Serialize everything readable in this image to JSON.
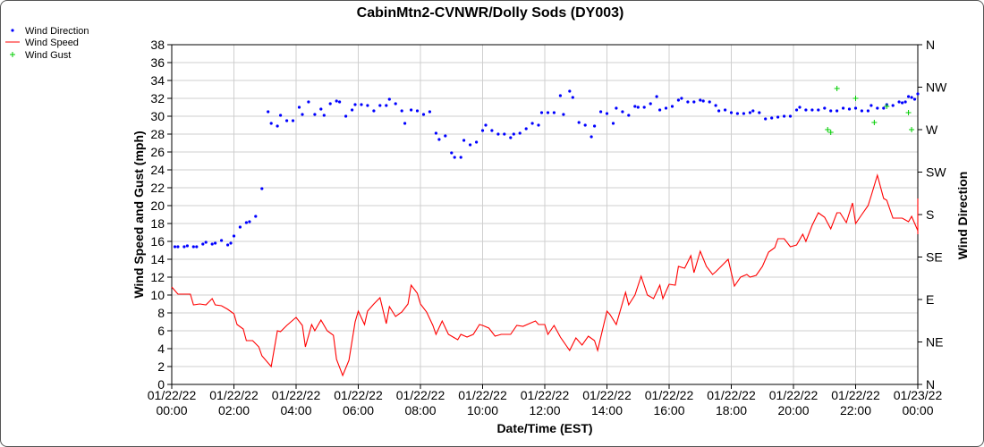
{
  "chart_data": {
    "type": "line",
    "title": "CabinMtn2-CVNWR/Dolly Sods (DY003)",
    "xlabel": "Date/Time (EST)",
    "ylabel": "Wind Speed and Gust (mph)",
    "y2label": "Wind Direction",
    "grid": true,
    "legend_position": "top-left",
    "xlim_hours": [
      0,
      24
    ],
    "ylim": [
      0,
      38
    ],
    "yticks": [
      0,
      2,
      4,
      6,
      8,
      10,
      12,
      14,
      16,
      18,
      20,
      22,
      24,
      26,
      28,
      30,
      32,
      34,
      36,
      38
    ],
    "y2ticks": [
      "N",
      "NE",
      "E",
      "SE",
      "S",
      "SW",
      "W",
      "NW",
      "N"
    ],
    "xticks": [
      {
        "hour": 0,
        "date": "01/22/22",
        "time": "00:00"
      },
      {
        "hour": 2,
        "date": "01/22/22",
        "time": "02:00"
      },
      {
        "hour": 4,
        "date": "01/22/22",
        "time": "04:00"
      },
      {
        "hour": 6,
        "date": "01/22/22",
        "time": "06:00"
      },
      {
        "hour": 8,
        "date": "01/22/22",
        "time": "08:00"
      },
      {
        "hour": 10,
        "date": "01/22/22",
        "time": "10:00"
      },
      {
        "hour": 12,
        "date": "01/22/22",
        "time": "12:00"
      },
      {
        "hour": 14,
        "date": "01/22/22",
        "time": "14:00"
      },
      {
        "hour": 16,
        "date": "01/22/22",
        "time": "16:00"
      },
      {
        "hour": 18,
        "date": "01/22/22",
        "time": "18:00"
      },
      {
        "hour": 20,
        "date": "01/22/22",
        "time": "20:00"
      },
      {
        "hour": 22,
        "date": "01/22/22",
        "time": "22:00"
      },
      {
        "hour": 24,
        "date": "01/23/22",
        "time": "00:00"
      }
    ],
    "series": [
      {
        "name": "Wind Direction",
        "marker": "dot",
        "color": "#0000ff",
        "axis": "right",
        "points": [
          [
            0.1,
            15.4
          ],
          [
            0.2,
            15.4
          ],
          [
            0.4,
            15.4
          ],
          [
            0.5,
            15.5
          ],
          [
            0.7,
            15.4
          ],
          [
            0.8,
            15.4
          ],
          [
            1.0,
            15.7
          ],
          [
            1.1,
            15.9
          ],
          [
            1.3,
            15.7
          ],
          [
            1.4,
            15.8
          ],
          [
            1.6,
            16.1
          ],
          [
            1.8,
            15.6
          ],
          [
            1.9,
            15.8
          ],
          [
            2.0,
            16.6
          ],
          [
            2.2,
            17.6
          ],
          [
            2.4,
            18.1
          ],
          [
            2.5,
            18.2
          ],
          [
            2.7,
            18.8
          ],
          [
            2.9,
            21.9
          ],
          [
            3.1,
            30.5
          ],
          [
            3.2,
            29.2
          ],
          [
            3.4,
            28.9
          ],
          [
            3.5,
            30.1
          ],
          [
            3.7,
            29.5
          ],
          [
            3.9,
            29.5
          ],
          [
            4.1,
            31.0
          ],
          [
            4.2,
            30.2
          ],
          [
            4.4,
            31.6
          ],
          [
            4.6,
            30.2
          ],
          [
            4.8,
            30.8
          ],
          [
            4.9,
            30.1
          ],
          [
            5.1,
            31.4
          ],
          [
            5.3,
            31.7
          ],
          [
            5.4,
            31.6
          ],
          [
            5.6,
            30.0
          ],
          [
            5.8,
            30.7
          ],
          [
            5.9,
            31.3
          ],
          [
            6.1,
            31.3
          ],
          [
            6.3,
            31.2
          ],
          [
            6.5,
            30.6
          ],
          [
            6.7,
            31.2
          ],
          [
            6.9,
            31.2
          ],
          [
            7.0,
            31.9
          ],
          [
            7.2,
            31.4
          ],
          [
            7.4,
            30.6
          ],
          [
            7.5,
            29.2
          ],
          [
            7.7,
            30.7
          ],
          [
            7.9,
            30.6
          ],
          [
            8.1,
            30.2
          ],
          [
            8.3,
            30.5
          ],
          [
            8.5,
            28.1
          ],
          [
            8.6,
            27.4
          ],
          [
            8.8,
            27.8
          ],
          [
            9.0,
            25.9
          ],
          [
            9.1,
            25.4
          ],
          [
            9.3,
            25.4
          ],
          [
            9.4,
            27.3
          ],
          [
            9.6,
            26.8
          ],
          [
            9.8,
            27.1
          ],
          [
            10.0,
            28.4
          ],
          [
            10.1,
            29.0
          ],
          [
            10.3,
            28.4
          ],
          [
            10.5,
            28.0
          ],
          [
            10.7,
            28.0
          ],
          [
            10.9,
            27.6
          ],
          [
            11.0,
            28.0
          ],
          [
            11.2,
            28.1
          ],
          [
            11.4,
            28.6
          ],
          [
            11.6,
            29.2
          ],
          [
            11.8,
            29.0
          ],
          [
            11.9,
            30.4
          ],
          [
            12.1,
            30.4
          ],
          [
            12.3,
            30.4
          ],
          [
            12.5,
            32.3
          ],
          [
            12.6,
            30.2
          ],
          [
            12.8,
            32.8
          ],
          [
            12.9,
            32.1
          ],
          [
            13.1,
            29.3
          ],
          [
            13.3,
            29.0
          ],
          [
            13.5,
            27.7
          ],
          [
            13.6,
            28.9
          ],
          [
            13.8,
            30.5
          ],
          [
            14.0,
            30.3
          ],
          [
            14.2,
            29.2
          ],
          [
            14.3,
            30.9
          ],
          [
            14.5,
            30.5
          ],
          [
            14.7,
            30.1
          ],
          [
            14.9,
            31.1
          ],
          [
            15.0,
            31.0
          ],
          [
            15.2,
            31.0
          ],
          [
            15.4,
            31.4
          ],
          [
            15.6,
            32.2
          ],
          [
            15.7,
            30.7
          ],
          [
            15.9,
            30.9
          ],
          [
            16.1,
            31.1
          ],
          [
            16.3,
            31.8
          ],
          [
            16.4,
            32.0
          ],
          [
            16.6,
            31.6
          ],
          [
            16.8,
            31.6
          ],
          [
            17.0,
            31.8
          ],
          [
            17.1,
            31.7
          ],
          [
            17.3,
            31.6
          ],
          [
            17.5,
            31.2
          ],
          [
            17.6,
            30.6
          ],
          [
            17.8,
            30.7
          ],
          [
            18.0,
            30.4
          ],
          [
            18.2,
            30.3
          ],
          [
            18.4,
            30.3
          ],
          [
            18.6,
            30.4
          ],
          [
            18.7,
            30.6
          ],
          [
            18.9,
            30.4
          ],
          [
            19.1,
            29.7
          ],
          [
            19.3,
            29.8
          ],
          [
            19.5,
            29.9
          ],
          [
            19.7,
            30.0
          ],
          [
            19.9,
            30.0
          ],
          [
            20.1,
            30.7
          ],
          [
            20.2,
            31.0
          ],
          [
            20.4,
            30.7
          ],
          [
            20.6,
            30.7
          ],
          [
            20.8,
            30.7
          ],
          [
            21.0,
            30.9
          ],
          [
            21.2,
            30.6
          ],
          [
            21.4,
            30.6
          ],
          [
            21.6,
            30.9
          ],
          [
            21.8,
            30.8
          ],
          [
            22.0,
            30.9
          ],
          [
            22.2,
            30.6
          ],
          [
            22.4,
            30.6
          ],
          [
            22.5,
            31.2
          ],
          [
            22.7,
            30.9
          ],
          [
            22.9,
            30.9
          ],
          [
            23.0,
            31.3
          ],
          [
            23.2,
            31.2
          ],
          [
            23.4,
            31.6
          ],
          [
            23.5,
            31.5
          ],
          [
            23.6,
            31.6
          ],
          [
            23.7,
            32.2
          ],
          [
            23.8,
            32.1
          ],
          [
            23.9,
            31.9
          ],
          [
            24.0,
            32.5
          ]
        ]
      },
      {
        "name": "Wind Speed",
        "marker": "line",
        "color": "#ff0000",
        "axis": "left",
        "points": [
          [
            0.0,
            10.9
          ],
          [
            0.2,
            10.1
          ],
          [
            0.4,
            10.1
          ],
          [
            0.6,
            10.1
          ],
          [
            0.7,
            8.9
          ],
          [
            0.9,
            9.0
          ],
          [
            1.1,
            8.9
          ],
          [
            1.3,
            9.6
          ],
          [
            1.4,
            8.9
          ],
          [
            1.6,
            8.8
          ],
          [
            1.8,
            8.4
          ],
          [
            2.0,
            7.9
          ],
          [
            2.1,
            6.7
          ],
          [
            2.3,
            6.2
          ],
          [
            2.4,
            4.9
          ],
          [
            2.6,
            4.9
          ],
          [
            2.8,
            4.2
          ],
          [
            2.9,
            3.2
          ],
          [
            3.2,
            2.0
          ],
          [
            3.4,
            6.0
          ],
          [
            3.5,
            5.9
          ],
          [
            3.7,
            6.6
          ],
          [
            4.0,
            7.5
          ],
          [
            4.2,
            6.6
          ],
          [
            4.3,
            4.2
          ],
          [
            4.5,
            6.7
          ],
          [
            4.6,
            6.0
          ],
          [
            4.8,
            7.2
          ],
          [
            5.0,
            6.0
          ],
          [
            5.2,
            5.5
          ],
          [
            5.3,
            2.8
          ],
          [
            5.5,
            1.0
          ],
          [
            5.7,
            2.7
          ],
          [
            5.9,
            7.0
          ],
          [
            6.0,
            8.2
          ],
          [
            6.2,
            6.7
          ],
          [
            6.3,
            8.2
          ],
          [
            6.5,
            9.0
          ],
          [
            6.7,
            9.7
          ],
          [
            6.9,
            6.8
          ],
          [
            7.0,
            8.7
          ],
          [
            7.2,
            7.6
          ],
          [
            7.4,
            8.1
          ],
          [
            7.6,
            9.0
          ],
          [
            7.7,
            11.1
          ],
          [
            7.9,
            10.2
          ],
          [
            8.0,
            9.0
          ],
          [
            8.2,
            8.1
          ],
          [
            8.4,
            6.6
          ],
          [
            8.5,
            5.6
          ],
          [
            8.7,
            7.1
          ],
          [
            8.9,
            5.6
          ],
          [
            9.0,
            5.4
          ],
          [
            9.2,
            5.0
          ],
          [
            9.3,
            5.6
          ],
          [
            9.5,
            5.3
          ],
          [
            9.7,
            5.6
          ],
          [
            9.9,
            6.7
          ],
          [
            10.0,
            6.6
          ],
          [
            10.2,
            6.3
          ],
          [
            10.4,
            5.4
          ],
          [
            10.6,
            5.6
          ],
          [
            10.8,
            5.6
          ],
          [
            10.9,
            5.6
          ],
          [
            11.1,
            6.6
          ],
          [
            11.3,
            6.5
          ],
          [
            11.5,
            6.8
          ],
          [
            11.7,
            7.1
          ],
          [
            11.8,
            6.7
          ],
          [
            12.0,
            6.7
          ],
          [
            12.1,
            5.6
          ],
          [
            12.3,
            6.6
          ],
          [
            12.5,
            5.3
          ],
          [
            12.7,
            4.3
          ],
          [
            12.8,
            3.8
          ],
          [
            13.0,
            5.2
          ],
          [
            13.2,
            4.4
          ],
          [
            13.4,
            5.4
          ],
          [
            13.6,
            4.9
          ],
          [
            13.7,
            3.8
          ],
          [
            14.0,
            8.2
          ],
          [
            14.1,
            7.8
          ],
          [
            14.3,
            6.7
          ],
          [
            14.6,
            10.3
          ],
          [
            14.7,
            8.9
          ],
          [
            14.9,
            10.0
          ],
          [
            15.1,
            12.1
          ],
          [
            15.3,
            10.0
          ],
          [
            15.5,
            9.6
          ],
          [
            15.7,
            11.1
          ],
          [
            15.8,
            9.6
          ],
          [
            16.0,
            11.2
          ],
          [
            16.2,
            11.1
          ],
          [
            16.3,
            13.2
          ],
          [
            16.5,
            13.0
          ],
          [
            16.7,
            14.4
          ],
          [
            16.8,
            12.5
          ],
          [
            17.0,
            14.9
          ],
          [
            17.2,
            13.2
          ],
          [
            17.4,
            12.3
          ],
          [
            17.5,
            12.6
          ],
          [
            17.7,
            13.3
          ],
          [
            17.9,
            14.0
          ],
          [
            18.1,
            11.0
          ],
          [
            18.3,
            12.0
          ],
          [
            18.5,
            12.3
          ],
          [
            18.6,
            12.0
          ],
          [
            18.8,
            12.2
          ],
          [
            19.0,
            13.2
          ],
          [
            19.2,
            14.8
          ],
          [
            19.4,
            15.3
          ],
          [
            19.5,
            16.3
          ],
          [
            19.7,
            16.3
          ],
          [
            19.9,
            15.4
          ],
          [
            20.1,
            15.6
          ],
          [
            20.3,
            16.8
          ],
          [
            20.4,
            16.0
          ],
          [
            20.6,
            17.8
          ],
          [
            20.8,
            19.2
          ],
          [
            21.0,
            18.7
          ],
          [
            21.2,
            17.4
          ],
          [
            21.4,
            19.2
          ],
          [
            21.5,
            19.2
          ],
          [
            21.7,
            18.1
          ],
          [
            21.9,
            20.3
          ],
          [
            22.0,
            18.0
          ],
          [
            22.2,
            19.0
          ],
          [
            22.4,
            20.0
          ],
          [
            22.5,
            21.1
          ],
          [
            22.7,
            23.4
          ],
          [
            22.9,
            20.8
          ],
          [
            23.0,
            20.6
          ],
          [
            23.2,
            18.6
          ],
          [
            23.5,
            18.6
          ],
          [
            23.7,
            18.2
          ],
          [
            23.8,
            18.8
          ],
          [
            24.0,
            17.2
          ],
          [
            24.2,
            20.8
          ],
          [
            24.4,
            19.2
          ],
          [
            24.6,
            16.8
          ],
          [
            24.7,
            17.8
          ]
        ]
      },
      {
        "name": "Wind Gust",
        "marker": "plus",
        "color": "#00cc00",
        "axis": "left",
        "points": [
          [
            21.1,
            28.5
          ],
          [
            21.2,
            28.2
          ],
          [
            21.4,
            33.1
          ],
          [
            22.0,
            32.0
          ],
          [
            22.6,
            29.3
          ],
          [
            23.0,
            31.1
          ],
          [
            23.7,
            30.4
          ],
          [
            23.8,
            28.5
          ]
        ]
      }
    ]
  }
}
